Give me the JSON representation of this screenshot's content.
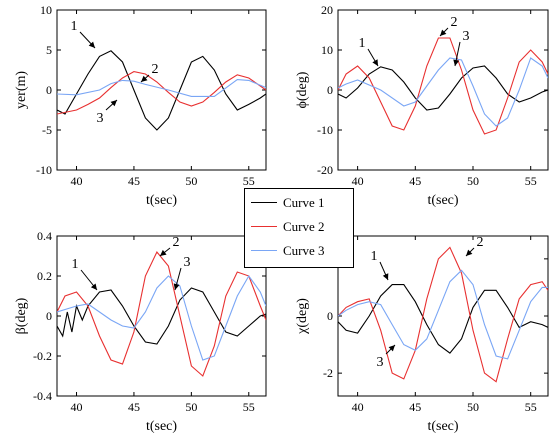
{
  "colors": {
    "curve1": "#000000",
    "curve2": "#e83030",
    "curve3": "#7aa6f5"
  },
  "legend": [
    {
      "label": "Curve 1",
      "color": "#000000"
    },
    {
      "label": "Curve 2",
      "color": "#e83030"
    },
    {
      "label": "Curve 3",
      "color": "#7aa6f5"
    }
  ],
  "chart_data": [
    {
      "type": "line",
      "xlabel": "t(sec)",
      "ylabel": "yer(m)",
      "xlim": [
        38.3,
        56.5
      ],
      "ylim": [
        -10,
        10
      ],
      "xticks": [
        40,
        45,
        50,
        55
      ],
      "yticks": [
        -10,
        -5,
        0,
        5,
        10
      ],
      "series": [
        {
          "name": "1",
          "x": [
            38.3,
            39,
            40,
            41,
            42,
            43,
            44,
            45,
            46,
            47,
            48,
            49,
            50,
            51,
            52,
            53,
            54,
            55,
            56,
            56.5
          ],
          "y": [
            -2.5,
            -3,
            -0.5,
            2,
            4.2,
            4.9,
            3.5,
            0,
            -3.5,
            -5,
            -3.5,
            0,
            3.5,
            4.2,
            2.5,
            -0.5,
            -2.5,
            -1.8,
            -1,
            -0.5
          ]
        },
        {
          "name": "2",
          "x": [
            38.3,
            40,
            41,
            42,
            43,
            44,
            45,
            46,
            47,
            48,
            49,
            50,
            51,
            52,
            53,
            54,
            55,
            56,
            56.5
          ],
          "y": [
            -3,
            -2.5,
            -1.8,
            -1,
            0.3,
            1.5,
            2.3,
            2,
            1,
            -0.3,
            -1.5,
            -2,
            -1.5,
            -0.3,
            1,
            1.9,
            1.5,
            0.5,
            0
          ]
        },
        {
          "name": "3",
          "x": [
            38.3,
            40,
            42,
            43,
            44,
            45,
            46,
            48,
            50,
            52,
            54,
            55,
            56,
            56.5
          ],
          "y": [
            -0.5,
            -0.6,
            0,
            0.8,
            1.2,
            1.1,
            0.7,
            0,
            -0.8,
            -0.8,
            1.3,
            1.2,
            0.6,
            0.3
          ]
        }
      ],
      "annotations": [
        "1",
        "2",
        "3"
      ]
    },
    {
      "type": "line",
      "xlabel": "t(sec)",
      "ylabel": "ϕ(deg)",
      "xlim": [
        38.3,
        56.5
      ],
      "ylim": [
        -20,
        20
      ],
      "xticks": [
        40,
        45,
        50,
        55
      ],
      "yticks": [
        -20,
        -10,
        0,
        10,
        20
      ],
      "series": [
        {
          "name": "1",
          "x": [
            38.3,
            39,
            40,
            41,
            42,
            43,
            44,
            45,
            46,
            47,
            48,
            49,
            50,
            51,
            52,
            53,
            54,
            55,
            56,
            56.5
          ],
          "y": [
            -1,
            -2,
            0.5,
            4,
            5.8,
            5,
            2,
            -2,
            -5,
            -4.5,
            -1,
            3,
            5.5,
            6,
            3,
            -1,
            -3,
            -2,
            -0.5,
            0
          ]
        },
        {
          "name": "2",
          "x": [
            38.3,
            39,
            40,
            41,
            42,
            43,
            44,
            45,
            46,
            47,
            48,
            49,
            50,
            51,
            52,
            53,
            54,
            55,
            56,
            56.5
          ],
          "y": [
            0,
            4,
            6,
            3,
            -3,
            -9,
            -10,
            -4,
            6,
            13,
            13,
            5,
            -5,
            -11,
            -10,
            -2,
            7,
            10,
            7,
            4
          ]
        },
        {
          "name": "3",
          "x": [
            38.3,
            39,
            40,
            42,
            44,
            45,
            46,
            47,
            48,
            49,
            50,
            51,
            52,
            53,
            54,
            55,
            56,
            56.5
          ],
          "y": [
            0.5,
            1.5,
            2.5,
            0,
            -4,
            -3,
            1,
            5,
            8,
            7.5,
            1,
            -6,
            -9,
            -7,
            0,
            8,
            6,
            3
          ]
        }
      ],
      "annotations": [
        "1",
        "2",
        "3"
      ]
    },
    {
      "type": "line",
      "xlabel": "t(sec)",
      "ylabel": "β(deg)",
      "xlim": [
        38.3,
        56.5
      ],
      "ylim": [
        -0.4,
        0.4
      ],
      "xticks": [
        40,
        45,
        50,
        55
      ],
      "yticks": [
        -0.4,
        -0.2,
        0,
        0.2,
        0.4
      ],
      "series": [
        {
          "name": "1",
          "x": [
            38.3,
            38.8,
            39.2,
            39.6,
            40,
            40.5,
            41,
            42,
            43,
            44,
            45,
            46,
            47,
            48,
            49,
            50,
            51,
            52,
            53,
            54,
            55,
            56,
            56.5
          ],
          "y": [
            -0.05,
            -0.1,
            0.02,
            -0.08,
            0.05,
            -0.02,
            0.05,
            0.12,
            0.13,
            0.05,
            -0.05,
            -0.13,
            -0.14,
            -0.05,
            0.08,
            0.14,
            0.12,
            0.02,
            -0.08,
            -0.1,
            -0.05,
            0,
            0.01
          ]
        },
        {
          "name": "2",
          "x": [
            38.3,
            39,
            40,
            41,
            42,
            43,
            44,
            45,
            46,
            47,
            48,
            49,
            50,
            51,
            52,
            53,
            54,
            55,
            56,
            56.5
          ],
          "y": [
            0.02,
            0.1,
            0.12,
            0.05,
            -0.1,
            -0.22,
            -0.24,
            -0.08,
            0.2,
            0.32,
            0.25,
            0,
            -0.25,
            -0.3,
            -0.15,
            0.1,
            0.22,
            0.2,
            0.05,
            -0.02
          ]
        },
        {
          "name": "3",
          "x": [
            38.3,
            40,
            41,
            42,
            43,
            44,
            45,
            46,
            47,
            48,
            49,
            50,
            51,
            52,
            53,
            54,
            55,
            56,
            56.5
          ],
          "y": [
            0.02,
            0.05,
            0.06,
            0.02,
            -0.02,
            -0.05,
            -0.06,
            0.02,
            0.14,
            0.2,
            0.15,
            -0.05,
            -0.22,
            -0.2,
            -0.05,
            0.1,
            0.2,
            0.12,
            0.05
          ]
        }
      ],
      "annotations": [
        "1",
        "2",
        "3"
      ]
    },
    {
      "type": "line",
      "xlabel": "t(sec)",
      "ylabel": "χ(deg)",
      "xlim": [
        38.3,
        56.5
      ],
      "ylim": [
        -2.8,
        2.8
      ],
      "xticks": [
        40,
        45,
        50,
        55
      ],
      "yticks": [
        -2,
        0,
        2
      ],
      "series": [
        {
          "name": "1",
          "x": [
            38.3,
            39,
            40,
            41,
            42,
            43,
            44,
            45,
            46,
            47,
            48,
            49,
            50,
            51,
            52,
            53,
            54,
            55,
            56,
            56.5
          ],
          "y": [
            -0.2,
            -0.5,
            -0.6,
            0,
            0.7,
            1.1,
            1.1,
            0.5,
            -0.3,
            -1,
            -1.3,
            -0.8,
            0.3,
            0.9,
            0.9,
            0.3,
            -0.4,
            -0.2,
            -0.3,
            -0.4
          ]
        },
        {
          "name": "2",
          "x": [
            38.3,
            39,
            40,
            41,
            42,
            43,
            44,
            45,
            46,
            47,
            48,
            49,
            50,
            51,
            52,
            53,
            54,
            55,
            56,
            56.5
          ],
          "y": [
            0,
            0.3,
            0.5,
            0.6,
            -0.5,
            -2,
            -2.2,
            -1.2,
            0.6,
            2,
            2.4,
            1.5,
            -0.5,
            -2,
            -2.3,
            -0.8,
            0.6,
            1.1,
            1.2,
            0.9
          ]
        },
        {
          "name": "3",
          "x": [
            38.3,
            39,
            40,
            41,
            42,
            43,
            44,
            45,
            46,
            47,
            48,
            49,
            50,
            51,
            52,
            53,
            54,
            55,
            56,
            56.5
          ],
          "y": [
            0,
            0.2,
            0.4,
            0.5,
            0.4,
            -0.3,
            -1,
            -1.2,
            -0.8,
            0.2,
            1.2,
            1.6,
            1.1,
            -0.3,
            -1.4,
            -1.5,
            -0.5,
            0.5,
            1,
            1
          ]
        }
      ],
      "annotations": [
        "1",
        "2",
        "3"
      ]
    }
  ]
}
